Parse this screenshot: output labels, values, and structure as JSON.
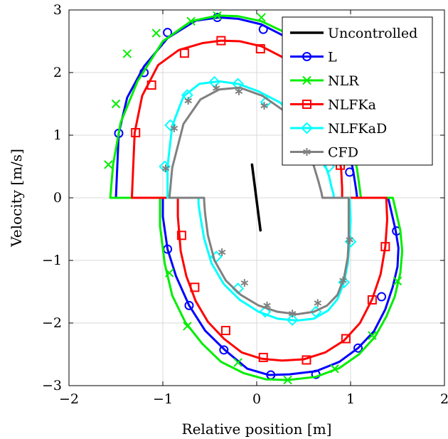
{
  "chart_data": {
    "type": "line",
    "xlabel": "Relative position [m]",
    "ylabel": "Velocity [m/s]",
    "xlim": [
      -2,
      2
    ],
    "ylim": [
      -3,
      3
    ],
    "xticks": [
      -2,
      -1,
      0,
      1,
      2
    ],
    "yticks": [
      -3,
      -2,
      -1,
      0,
      1,
      2,
      3
    ],
    "xtick_labels": [
      "−2",
      "−1",
      "0",
      "1",
      "2"
    ],
    "ytick_labels": [
      "−3",
      "−2",
      "−1",
      "0",
      "1",
      "2",
      "3"
    ],
    "grid": true,
    "legend_position": "top-right",
    "series": [
      {
        "name": "Uncontrolled",
        "color": "#000000",
        "marker": "none",
        "x": [
          -0.05,
          0.04
        ],
        "y": [
          0.53,
          -0.52
        ]
      },
      {
        "name": "L",
        "color": "#0000ff",
        "marker": "circle",
        "x": [
          -1.5,
          -1.47,
          -1.38,
          -1.2,
          -0.95,
          -0.65,
          -0.4,
          -0.2,
          0.05,
          0.27,
          0.48,
          0.68,
          0.84,
          0.96,
          1.03,
          1.06,
          1.07,
          1.4,
          1.48,
          1.51,
          1.5,
          1.45,
          1.37,
          1.25,
          1.08,
          0.88,
          0.63,
          0.35,
          0.13,
          -0.1,
          -0.34,
          -0.55,
          -0.72,
          -0.86,
          -0.95,
          -1.0,
          -1.0,
          -1.25,
          -1.5
        ],
        "y": [
          0,
          1.03,
          1.6,
          2.1,
          2.55,
          2.83,
          2.88,
          2.86,
          2.77,
          2.6,
          2.35,
          1.97,
          1.5,
          0.97,
          0.41,
          0.12,
          0,
          0,
          -0.52,
          -0.8,
          -1.1,
          -1.42,
          -1.78,
          -2.13,
          -2.4,
          -2.62,
          -2.77,
          -2.82,
          -2.83,
          -2.73,
          -2.43,
          -2.12,
          -1.72,
          -1.25,
          -0.82,
          -0.3,
          0,
          0,
          0
        ],
        "markers_x": [
          -1.47,
          -1.2,
          -0.95,
          -0.42,
          0.07,
          0.99,
          1.49,
          1.33,
          1.08,
          0.63,
          0.15,
          -0.35,
          -0.72,
          -0.95
        ],
        "markers_y": [
          1.03,
          2.0,
          2.64,
          2.88,
          2.69,
          0.41,
          -0.53,
          -1.58,
          -2.4,
          -2.82,
          -2.83,
          -2.43,
          -1.72,
          -0.82
        ]
      },
      {
        "name": "NLR",
        "color": "#00ee00",
        "marker": "cross",
        "x": [
          -1.56,
          -1.53,
          -1.45,
          -1.27,
          -1.0,
          -0.7,
          -0.42,
          -0.2,
          0.05,
          0.29,
          0.51,
          0.71,
          0.87,
          0.99,
          1.07,
          1.1,
          1.11,
          1.45,
          1.53,
          1.55,
          1.53,
          1.47,
          1.38,
          1.26,
          1.09,
          0.88,
          0.63,
          0.33,
          0.1,
          -0.14,
          -0.38,
          -0.58,
          -0.76,
          -0.9,
          -0.98,
          -1.03,
          -1.03,
          -1.3,
          -1.56
        ],
        "y": [
          0,
          0.53,
          1.2,
          1.86,
          2.5,
          2.82,
          2.91,
          2.9,
          2.82,
          2.65,
          2.38,
          2.0,
          1.55,
          1.0,
          0.45,
          0.12,
          0,
          0,
          -0.52,
          -0.85,
          -1.2,
          -1.58,
          -1.9,
          -2.22,
          -2.5,
          -2.72,
          -2.86,
          -2.91,
          -2.9,
          -2.8,
          -2.62,
          -2.33,
          -1.99,
          -1.56,
          -1.05,
          -0.45,
          0,
          0,
          0
        ],
        "markers_x": [
          -1.58,
          -1.5,
          -1.38,
          -1.07,
          -0.7,
          -0.42,
          0.05,
          0.51,
          1.5,
          1.23,
          0.83,
          0.33,
          -0.2,
          -0.74,
          -0.93
        ],
        "markers_y": [
          0.53,
          1.5,
          2.3,
          2.63,
          2.82,
          2.91,
          2.88,
          2.5,
          -1.33,
          -2.2,
          -2.73,
          -2.91,
          -2.63,
          -2.05,
          -1.2
        ]
      },
      {
        "name": "NLFKa",
        "color": "#ff0000",
        "marker": "square",
        "x": [
          -1.33,
          -1.3,
          -1.22,
          -1.05,
          -0.83,
          -0.58,
          -0.38,
          -0.18,
          0.05,
          0.27,
          0.46,
          0.64,
          0.77,
          0.86,
          0.9,
          0.91,
          0.91,
          1.38,
          1.39,
          1.37,
          1.32,
          1.23,
          1.1,
          0.93,
          0.73,
          0.5,
          0.27,
          0.05,
          -0.16,
          -0.35,
          -0.52,
          -0.65,
          -0.75,
          -0.81,
          -0.84,
          -0.84,
          -1.1,
          -1.33
        ],
        "y": [
          0,
          1.04,
          1.63,
          2.12,
          2.36,
          2.47,
          2.51,
          2.5,
          2.42,
          2.25,
          2.02,
          1.67,
          1.28,
          0.85,
          0.45,
          0.15,
          0,
          0,
          -0.35,
          -0.78,
          -1.22,
          -1.62,
          -2.0,
          -2.28,
          -2.47,
          -2.58,
          -2.6,
          -2.57,
          -2.47,
          -2.25,
          -1.98,
          -1.65,
          -1.25,
          -0.85,
          -0.3,
          0,
          0,
          0
        ],
        "markers_x": [
          -1.29,
          -1.12,
          -0.77,
          -0.38,
          0.04,
          0.89,
          1.37,
          1.23,
          0.95,
          0.53,
          0.07,
          -0.33,
          -0.66,
          -0.8
        ],
        "markers_y": [
          1.04,
          1.8,
          2.31,
          2.51,
          2.38,
          0.52,
          -0.78,
          -1.63,
          -2.25,
          -2.59,
          -2.55,
          -2.12,
          -1.43,
          -0.6
        ]
      },
      {
        "name": "NLFKaD",
        "color": "#00ffff",
        "marker": "diamond",
        "x": [
          -0.95,
          -0.95,
          -0.9,
          -0.78,
          -0.61,
          -0.4,
          -0.2,
          0.02,
          0.25,
          0.45,
          0.6,
          0.71,
          0.77,
          0.8,
          0.82,
          0.82,
          0.99,
          1.0,
          0.99,
          0.97,
          0.93,
          0.86,
          0.76,
          0.61,
          0.43,
          0.22,
          0.02,
          -0.18,
          -0.35,
          -0.48,
          -0.56,
          -0.6,
          -0.62,
          -0.62,
          -0.8,
          -0.95
        ],
        "y": [
          0,
          0.5,
          1.15,
          1.62,
          1.82,
          1.86,
          1.82,
          1.7,
          1.52,
          1.25,
          0.95,
          0.6,
          0.35,
          0.15,
          0.05,
          0,
          0,
          -0.35,
          -0.7,
          -1.05,
          -1.35,
          -1.62,
          -1.8,
          -1.93,
          -1.96,
          -1.93,
          -1.82,
          -1.63,
          -1.38,
          -1.05,
          -0.65,
          -0.3,
          -0.1,
          0,
          0,
          0
        ],
        "markers_x": [
          -0.98,
          -0.92,
          -0.74,
          -0.45,
          -0.2,
          0.1,
          0.77,
          1.0,
          0.93,
          0.63,
          0.38,
          0.09,
          -0.2,
          -0.43
        ],
        "markers_y": [
          0.5,
          1.16,
          1.64,
          1.85,
          1.82,
          1.53,
          0.5,
          -0.7,
          -1.35,
          -1.82,
          -1.95,
          -1.82,
          -1.45,
          -0.94
        ]
      },
      {
        "name": "CFD",
        "color": "#808080",
        "marker": "star",
        "x": [
          -0.93,
          -0.9,
          -0.78,
          -0.6,
          -0.4,
          -0.18,
          0.06,
          0.28,
          0.47,
          0.59,
          0.66,
          0.69,
          0.7,
          0.98,
          0.98,
          0.97,
          0.93,
          0.86,
          0.75,
          0.61,
          0.43,
          0.22,
          0.02,
          -0.17,
          -0.33,
          -0.45,
          -0.52,
          -0.55,
          -0.56,
          -0.56,
          -0.75,
          -0.93
        ],
        "y": [
          0,
          0.48,
          1.18,
          1.57,
          1.73,
          1.76,
          1.63,
          1.4,
          1.05,
          0.6,
          0.25,
          0.08,
          0,
          0,
          -0.65,
          -0.95,
          -1.28,
          -1.55,
          -1.72,
          -1.82,
          -1.86,
          -1.82,
          -1.72,
          -1.55,
          -1.32,
          -1.0,
          -0.6,
          -0.25,
          -0.05,
          0,
          0,
          0
        ],
        "markers_x": [
          -0.97,
          -0.88,
          -0.73,
          -0.43,
          -0.19,
          0.08,
          0.64,
          0.99,
          0.92,
          0.65,
          0.38,
          0.11,
          -0.13,
          -0.37
        ],
        "markers_y": [
          0.47,
          1.11,
          1.55,
          1.75,
          1.7,
          1.47,
          0.6,
          -0.67,
          -1.32,
          -1.68,
          -1.85,
          -1.72,
          -1.36,
          -0.87
        ]
      }
    ]
  }
}
